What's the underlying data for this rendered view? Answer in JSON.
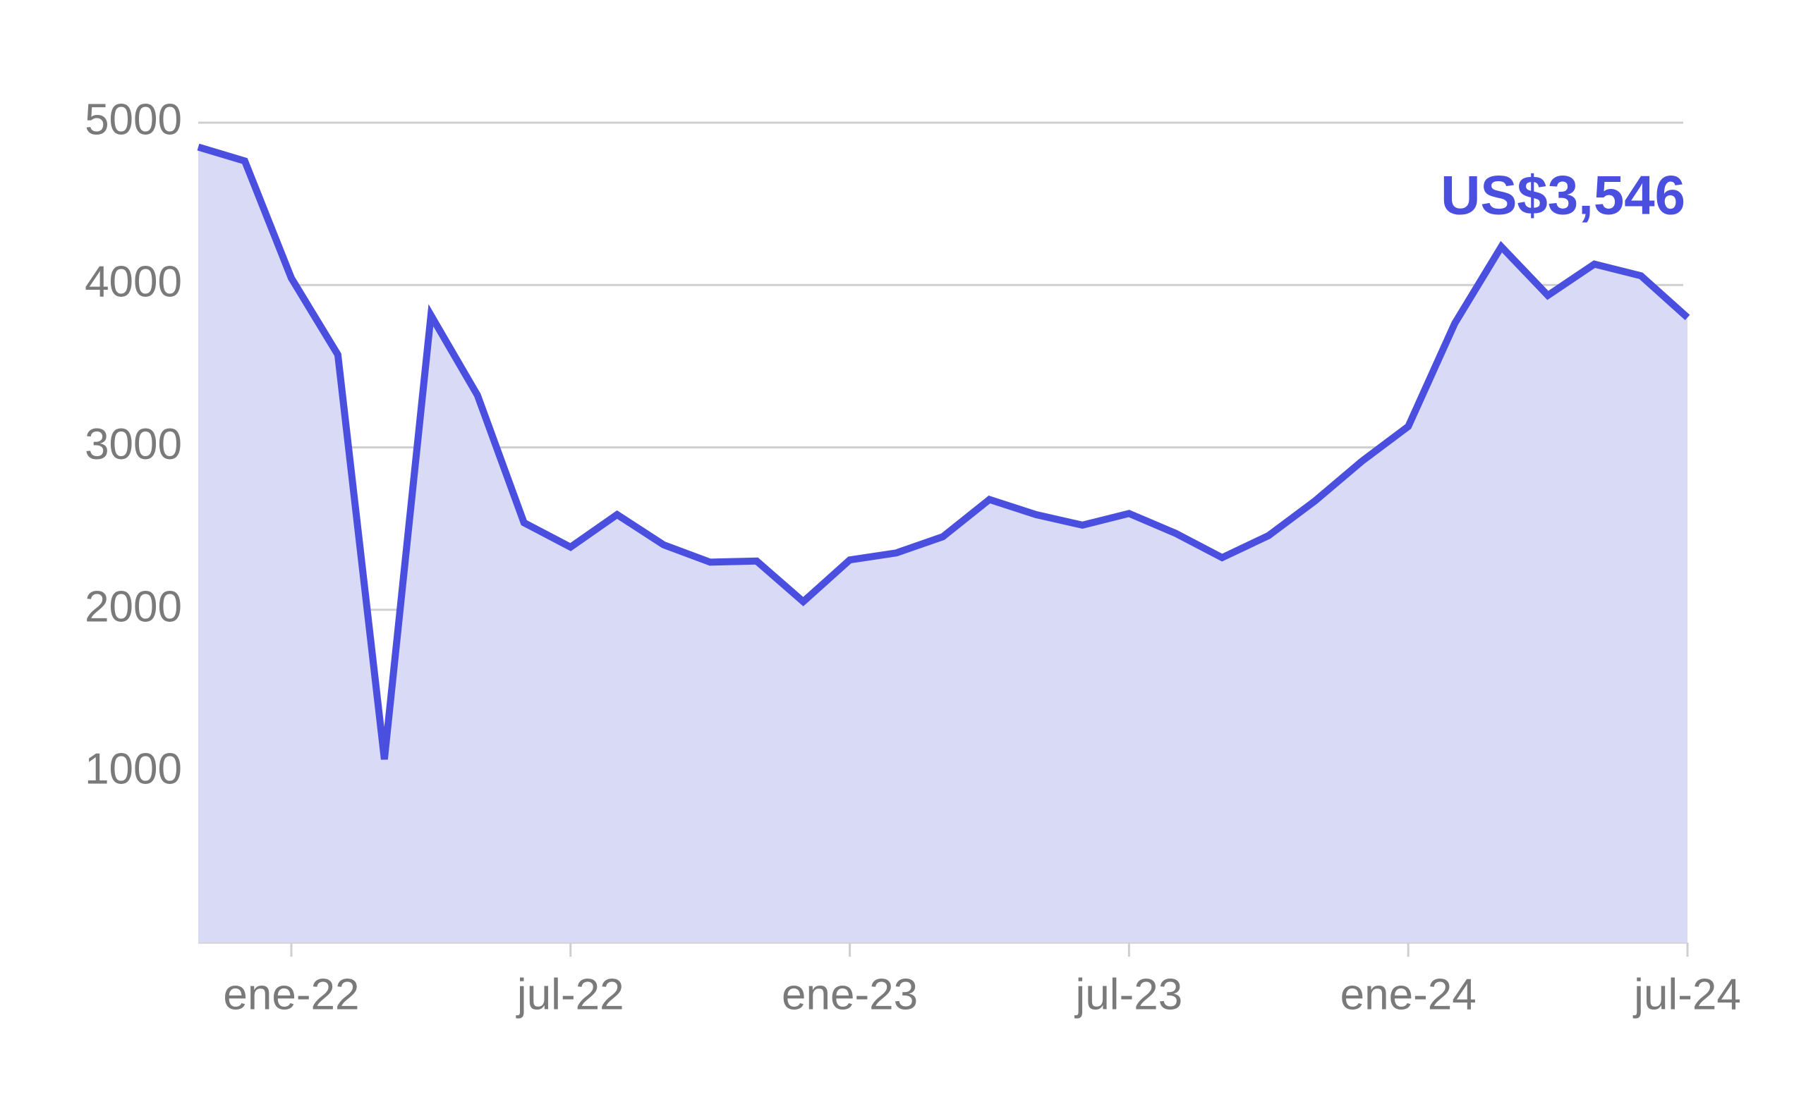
{
  "chart_data": {
    "type": "area",
    "annotation": "US$3,546",
    "categories": [
      null,
      null,
      "ene-22",
      null,
      null,
      null,
      null,
      null,
      "jul-22",
      null,
      null,
      null,
      null,
      null,
      "ene-23",
      null,
      null,
      null,
      null,
      null,
      "jul-23",
      null,
      null,
      null,
      null,
      null,
      "ene-24",
      null,
      null,
      null,
      null,
      null,
      "jul-24"
    ],
    "values": [
      4850,
      4764,
      4043,
      3571,
      1079,
      3814,
      3321,
      2536,
      2386,
      2586,
      2400,
      2293,
      2300,
      2050,
      2307,
      2350,
      2450,
      2679,
      2586,
      2521,
      2593,
      2471,
      2321,
      2457,
      2671,
      2914,
      3129,
      3764,
      4236,
      3936,
      4129,
      4057,
      3800
    ],
    "color": "#4a4fe0",
    "fill": "#d9dbf6",
    "ylim": [
      -50,
      5000
    ],
    "yticks": [
      1000,
      2000,
      3000,
      4000,
      5000
    ],
    "grid": true
  }
}
